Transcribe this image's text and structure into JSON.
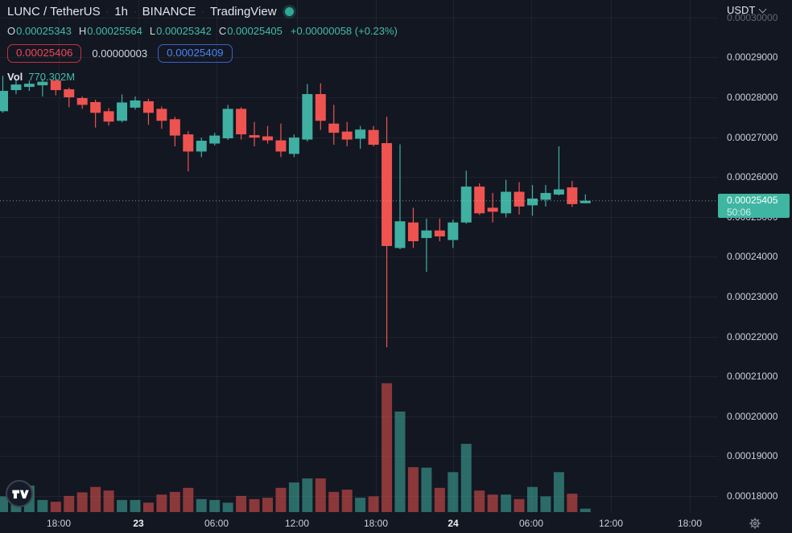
{
  "header": {
    "symbol": "LUNC / TetherUS",
    "sep": "·",
    "interval": "1h",
    "exchange": "BINANCE",
    "provider": "TradingView",
    "ohlc": {
      "o_label": "O",
      "o": "0.00025343",
      "h_label": "H",
      "h": "0.00025564",
      "l_label": "L",
      "l": "0.00025342",
      "c_label": "C",
      "c": "0.00025405",
      "change": "+0.00000058 (+0.23%)"
    },
    "sell_price": "0.00025406",
    "spread": "0.00000003",
    "buy_price": "0.00025409",
    "vol_label": "Vol",
    "vol_value": "770.302M"
  },
  "price_axis": {
    "currency": "USDT",
    "labels": [
      "0.00030000",
      "0.00029000",
      "0.00028000",
      "0.00027000",
      "0.00026000",
      "0.00025000",
      "0.00024000",
      "0.00023000",
      "0.00022000",
      "0.00021000",
      "0.00020000",
      "0.00019000",
      "0.00018000"
    ],
    "last_price": "0.00025405",
    "countdown": "50:06"
  },
  "time_axis": {
    "ticks": [
      {
        "label": "18:00",
        "x": 73,
        "major": false
      },
      {
        "label": "23",
        "x": 172,
        "major": true
      },
      {
        "label": "06:00",
        "x": 269,
        "major": false
      },
      {
        "label": "12:00",
        "x": 369,
        "major": false
      },
      {
        "label": "18:00",
        "x": 467,
        "major": false
      },
      {
        "label": "24",
        "x": 563,
        "major": true
      },
      {
        "label": "06:00",
        "x": 660,
        "major": false
      },
      {
        "label": "12:00",
        "x": 759,
        "major": false
      },
      {
        "label": "18:00",
        "x": 857,
        "major": false
      }
    ]
  },
  "colors": {
    "background": "#131722",
    "up": "#3fb0a2",
    "down": "#ef5350",
    "up_volume": "rgba(63,176,162,0.55)",
    "down_volume": "rgba(239,83,80,0.55)",
    "last_price_tag_bg": "#3eb6a2",
    "legend_value": "#41bdaa",
    "sell_red": "#f3465a",
    "buy_blue": "#4a86f2",
    "axis_text": "#ccd0da",
    "grid": "rgba(255,255,255,0.055)"
  },
  "chart_data": {
    "type": "candlestick_with_volume",
    "title": "LUNC / TetherUS · 1h · BINANCE",
    "interval": "1h",
    "price_unit": "1e-8 USDT (25405 = 0.00025405)",
    "volume_unit": "millions of LUNC",
    "ylim": [
      0.000175,
      0.000305
    ],
    "grid": true,
    "legend_position": "top-left",
    "time_ticks": [
      "18:00",
      "23",
      "06:00",
      "12:00",
      "18:00",
      "24",
      "06:00",
      "12:00",
      "18:00"
    ],
    "last": {
      "close": 25405,
      "countdown": "50:06"
    },
    "columns": [
      "open",
      "high",
      "low",
      "close",
      "volume_millions"
    ],
    "candles": [
      [
        27650,
        28540,
        27610,
        28160,
        3500
      ],
      [
        28180,
        28460,
        28080,
        28320,
        4800
      ],
      [
        28260,
        28420,
        28160,
        28340,
        5900
      ],
      [
        28300,
        28460,
        28020,
        28390,
        2700
      ],
      [
        28420,
        28470,
        28050,
        28180,
        2300
      ],
      [
        28200,
        28240,
        27750,
        28000,
        3600
      ],
      [
        27980,
        28020,
        27710,
        27810,
        4400
      ],
      [
        27880,
        27940,
        27240,
        27610,
        5600
      ],
      [
        27650,
        27730,
        27290,
        27390,
        4800
      ],
      [
        27410,
        28070,
        27370,
        27870,
        2700
      ],
      [
        27740,
        28020,
        27690,
        27920,
        2700
      ],
      [
        27900,
        27960,
        27310,
        27610,
        2100
      ],
      [
        27710,
        27770,
        27210,
        27410,
        3900
      ],
      [
        27450,
        27510,
        26770,
        27040,
        4500
      ],
      [
        27070,
        27150,
        26140,
        26640,
        5400
      ],
      [
        26640,
        26990,
        26500,
        26910,
        2900
      ],
      [
        26840,
        27110,
        26790,
        27040,
        2700
      ],
      [
        26970,
        27810,
        26930,
        27710,
        2100
      ],
      [
        27710,
        27750,
        26940,
        27070,
        3600
      ],
      [
        27050,
        27380,
        26770,
        26990,
        2900
      ],
      [
        27020,
        27280,
        26840,
        26920,
        3200
      ],
      [
        26920,
        27340,
        26500,
        26640,
        5400
      ],
      [
        26580,
        27070,
        26500,
        26990,
        6600
      ],
      [
        26940,
        28330,
        26890,
        28080,
        7500
      ],
      [
        28080,
        28350,
        27180,
        27410,
        7500
      ],
      [
        27340,
        27810,
        26810,
        27110,
        4500
      ],
      [
        27140,
        27380,
        26770,
        26940,
        5000
      ],
      [
        26960,
        27280,
        26710,
        27190,
        3200
      ],
      [
        27180,
        27280,
        26770,
        26810,
        3500
      ],
      [
        26850,
        27510,
        21730,
        24270,
        28700
      ],
      [
        24220,
        26820,
        24190,
        24890,
        22400
      ],
      [
        24860,
        25230,
        24220,
        24390,
        10000
      ],
      [
        24470,
        24960,
        23620,
        24660,
        9900
      ],
      [
        24660,
        24960,
        24390,
        24510,
        5400
      ],
      [
        24420,
        24930,
        24220,
        24860,
        8900
      ],
      [
        24860,
        26160,
        24830,
        25760,
        15200
      ],
      [
        25760,
        25840,
        25050,
        25090,
        4800
      ],
      [
        25230,
        25600,
        24860,
        25130,
        3900
      ],
      [
        25090,
        25930,
        24990,
        25630,
        3900
      ],
      [
        25630,
        25870,
        25060,
        25260,
        2900
      ],
      [
        25290,
        25800,
        25030,
        25460,
        5600
      ],
      [
        25430,
        25800,
        25260,
        25600,
        3500
      ],
      [
        25560,
        26770,
        25540,
        25690,
        8900
      ],
      [
        25740,
        25900,
        25250,
        25320,
        4100
      ],
      [
        25343,
        25564,
        25342,
        25405,
        770
      ]
    ]
  }
}
